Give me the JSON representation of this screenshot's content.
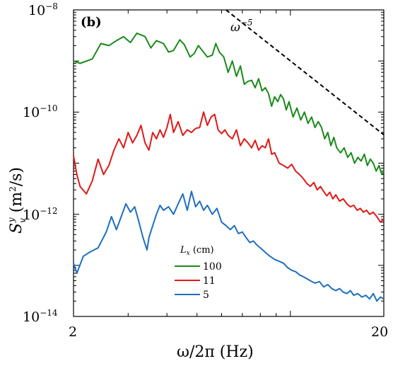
{
  "chart_data": {
    "type": "line",
    "panel_label": "(b)",
    "xlabel": "ω/2π (Hz)",
    "ylabel": {
      "symbol": "S",
      "sub": "v",
      "sup": "y",
      "unit": " (m",
      "unit_exp": "2",
      "unit_tail": "/s)"
    },
    "xscale": "log",
    "yscale": "log",
    "xlim": [
      2,
      20
    ],
    "ylim": [
      1e-14,
      1e-08
    ],
    "x_ticks": [
      "2",
      "20"
    ],
    "y_ticks": [
      {
        "base": "10",
        "exp": "−8",
        "value": 1e-08
      },
      {
        "base": "10",
        "exp": "−10",
        "value": 1e-10
      },
      {
        "base": "10",
        "exp": "−12",
        "value": 1e-12
      },
      {
        "base": "10",
        "exp": "−14",
        "value": 1e-14
      }
    ],
    "legend": {
      "title": "L_x (cm)",
      "title_main": "L",
      "title_sub": "x",
      "title_unit": " (cm)",
      "placement": "lower-center"
    },
    "annotation": {
      "base": "ω",
      "exp": "−5"
    },
    "series": [
      {
        "name": "100",
        "color": "#1a8a1a",
        "points": [
          [
            2.0,
            1e-09
          ],
          [
            2.1,
            9e-10
          ],
          [
            2.3,
            1.1e-09
          ],
          [
            2.45,
            2.2e-09
          ],
          [
            2.6,
            2e-09
          ],
          [
            2.75,
            2.5e-09
          ],
          [
            2.9,
            3e-09
          ],
          [
            3.05,
            2.3e-09
          ],
          [
            3.2,
            3.5e-09
          ],
          [
            3.4,
            3e-09
          ],
          [
            3.55,
            1.8e-09
          ],
          [
            3.7,
            2.5e-09
          ],
          [
            3.9,
            2.2e-09
          ],
          [
            4.05,
            1.5e-09
          ],
          [
            4.2,
            1.6e-09
          ],
          [
            4.4,
            2.6e-09
          ],
          [
            4.55,
            2.1e-09
          ],
          [
            4.75,
            1.2e-09
          ],
          [
            4.9,
            1.4e-09
          ],
          [
            5.05,
            2e-09
          ],
          [
            5.2,
            1.6e-09
          ],
          [
            5.4,
            1.2e-09
          ],
          [
            5.6,
            1.3e-09
          ],
          [
            5.75,
            2.2e-09
          ],
          [
            5.9,
            1.5e-09
          ],
          [
            6.1,
            1.2e-09
          ],
          [
            6.3,
            6e-10
          ],
          [
            6.5,
            1e-09
          ],
          [
            6.7,
            5e-10
          ],
          [
            6.9,
            8e-10
          ],
          [
            7.1,
            3.5e-10
          ],
          [
            7.3,
            4e-10
          ],
          [
            7.5,
            4.2e-10
          ],
          [
            7.7,
            3e-10
          ],
          [
            7.9,
            4.5e-10
          ],
          [
            8.1,
            2.6e-10
          ],
          [
            8.3,
            3e-10
          ],
          [
            8.5,
            2.3e-10
          ],
          [
            8.7,
            1.3e-10
          ],
          [
            8.9,
            2e-10
          ],
          [
            9.1,
            1.6e-10
          ],
          [
            9.3,
            2.2e-10
          ],
          [
            9.5,
            1.8e-10
          ],
          [
            9.7,
            1.1e-10
          ],
          [
            9.9,
            1.6e-10
          ],
          [
            10.2,
            8e-11
          ],
          [
            10.5,
            1.2e-10
          ],
          [
            10.8,
            7e-11
          ],
          [
            11.1,
            1e-10
          ],
          [
            11.4,
            6e-11
          ],
          [
            11.7,
            8e-11
          ],
          [
            12.0,
            5e-11
          ],
          [
            12.3,
            6.5e-11
          ],
          [
            12.6,
            5e-11
          ],
          [
            12.9,
            3e-11
          ],
          [
            13.2,
            4e-11
          ],
          [
            13.5,
            2.2e-11
          ],
          [
            13.8,
            3.2e-11
          ],
          [
            14.1,
            2e-11
          ],
          [
            14.5,
            1.6e-11
          ],
          [
            14.9,
            2e-11
          ],
          [
            15.3,
            1.3e-11
          ],
          [
            15.7,
            1.6e-11
          ],
          [
            16.1,
            1e-11
          ],
          [
            16.5,
            1.3e-11
          ],
          [
            16.9,
            1.1e-11
          ],
          [
            17.3,
            1.5e-11
          ],
          [
            17.7,
            9e-12
          ],
          [
            18.1,
            1.2e-11
          ],
          [
            18.5,
            1e-11
          ],
          [
            18.9,
            7e-12
          ],
          [
            19.3,
            9e-12
          ],
          [
            19.7,
            6e-12
          ],
          [
            20.0,
            7e-12
          ]
        ]
      },
      {
        "name": "11",
        "color": "#e01919",
        "points": [
          [
            2.0,
            1.4e-11
          ],
          [
            2.05,
            6e-12
          ],
          [
            2.1,
            3.5e-12
          ],
          [
            2.2,
            2.5e-12
          ],
          [
            2.3,
            4.5e-12
          ],
          [
            2.4,
            1.2e-11
          ],
          [
            2.5,
            6e-12
          ],
          [
            2.6,
            9e-12
          ],
          [
            2.7,
            1.8e-11
          ],
          [
            2.8,
            3e-11
          ],
          [
            2.9,
            2e-11
          ],
          [
            3.0,
            4e-11
          ],
          [
            3.1,
            2.5e-11
          ],
          [
            3.2,
            3.5e-11
          ],
          [
            3.3,
            5.5e-11
          ],
          [
            3.4,
            2.5e-11
          ],
          [
            3.5,
            1.8e-11
          ],
          [
            3.6,
            4e-11
          ],
          [
            3.7,
            3e-11
          ],
          [
            3.8,
            4.5e-11
          ],
          [
            3.9,
            3.2e-11
          ],
          [
            4.0,
            5e-11
          ],
          [
            4.1,
            9e-11
          ],
          [
            4.2,
            4e-11
          ],
          [
            4.35,
            6.5e-11
          ],
          [
            4.5,
            3.5e-11
          ],
          [
            4.65,
            4.5e-11
          ],
          [
            4.8,
            4e-11
          ],
          [
            4.95,
            4.8e-11
          ],
          [
            5.1,
            5e-11
          ],
          [
            5.25,
            1e-10
          ],
          [
            5.4,
            5.5e-11
          ],
          [
            5.55,
            8e-11
          ],
          [
            5.7,
            9e-11
          ],
          [
            5.85,
            4.5e-11
          ],
          [
            6.0,
            3.8e-11
          ],
          [
            6.15,
            4.5e-11
          ],
          [
            6.3,
            3.5e-11
          ],
          [
            6.5,
            3e-11
          ],
          [
            6.7,
            4.5e-11
          ],
          [
            6.9,
            2.2e-11
          ],
          [
            7.1,
            3e-11
          ],
          [
            7.3,
            2.5e-11
          ],
          [
            7.5,
            2e-11
          ],
          [
            7.7,
            2.8e-11
          ],
          [
            7.9,
            1.8e-11
          ],
          [
            8.1,
            2.2e-11
          ],
          [
            8.3,
            2e-11
          ],
          [
            8.5,
            3e-11
          ],
          [
            8.7,
            1.5e-11
          ],
          [
            8.9,
            1.6e-11
          ],
          [
            9.2,
            1e-11
          ],
          [
            9.5,
            9e-12
          ],
          [
            9.8,
            8e-12
          ],
          [
            10.1,
            9.5e-12
          ],
          [
            10.4,
            7e-12
          ],
          [
            10.7,
            6e-12
          ],
          [
            11.0,
            5e-12
          ],
          [
            11.3,
            4e-12
          ],
          [
            11.6,
            3.5e-12
          ],
          [
            11.9,
            4.2e-12
          ],
          [
            12.2,
            3e-12
          ],
          [
            12.5,
            3.5e-12
          ],
          [
            12.8,
            2.8e-12
          ],
          [
            13.1,
            2.3e-12
          ],
          [
            13.4,
            2.7e-12
          ],
          [
            13.7,
            2e-12
          ],
          [
            14.0,
            2.4e-12
          ],
          [
            14.4,
            1.8e-12
          ],
          [
            14.8,
            2e-12
          ],
          [
            15.2,
            1.6e-12
          ],
          [
            15.6,
            1.4e-12
          ],
          [
            16.0,
            1.5e-12
          ],
          [
            16.4,
            1.2e-12
          ],
          [
            16.8,
            1.3e-12
          ],
          [
            17.2,
            1.1e-12
          ],
          [
            17.6,
            1.2e-12
          ],
          [
            18.0,
            1e-12
          ],
          [
            18.5,
            1.1e-12
          ],
          [
            19.0,
            9e-13
          ],
          [
            19.5,
            7e-13
          ],
          [
            20.0,
            8e-13
          ]
        ]
      },
      {
        "name": "5",
        "color": "#1f6fbe",
        "points": [
          [
            2.0,
            1.1e-13
          ],
          [
            2.05,
            7e-14
          ],
          [
            2.15,
            1.5e-13
          ],
          [
            2.25,
            1.8e-13
          ],
          [
            2.4,
            2.2e-13
          ],
          [
            2.55,
            4.5e-13
          ],
          [
            2.65,
            9e-13
          ],
          [
            2.75,
            5e-13
          ],
          [
            2.85,
            9e-13
          ],
          [
            2.95,
            1.6e-12
          ],
          [
            3.05,
            1.1e-12
          ],
          [
            3.15,
            1.4e-12
          ],
          [
            3.25,
            7e-13
          ],
          [
            3.35,
            3.5e-13
          ],
          [
            3.45,
            2e-13
          ],
          [
            3.5,
            3.5e-13
          ],
          [
            3.6,
            6e-13
          ],
          [
            3.7,
            1e-12
          ],
          [
            3.8,
            1.5e-12
          ],
          [
            3.9,
            1.2e-12
          ],
          [
            4.05,
            1.4e-12
          ],
          [
            4.2,
            1e-12
          ],
          [
            4.35,
            1.6e-12
          ],
          [
            4.5,
            2.5e-12
          ],
          [
            4.65,
            1.2e-12
          ],
          [
            4.8,
            2.8e-12
          ],
          [
            4.95,
            1.4e-12
          ],
          [
            5.1,
            1.8e-12
          ],
          [
            5.25,
            1.2e-12
          ],
          [
            5.4,
            1.5e-12
          ],
          [
            5.6,
            1e-12
          ],
          [
            5.8,
            1.3e-12
          ],
          [
            6.0,
            7e-13
          ],
          [
            6.2,
            6e-13
          ],
          [
            6.4,
            5e-13
          ],
          [
            6.6,
            6e-13
          ],
          [
            6.8,
            4.2e-13
          ],
          [
            7.0,
            4.5e-13
          ],
          [
            7.2,
            3.5e-13
          ],
          [
            7.4,
            2.8e-13
          ],
          [
            7.6,
            3e-13
          ],
          [
            7.8,
            2.5e-13
          ],
          [
            8.0,
            2.2e-13
          ],
          [
            8.3,
            1.8e-13
          ],
          [
            8.6,
            1.5e-13
          ],
          [
            8.9,
            1.3e-13
          ],
          [
            9.2,
            1.2e-13
          ],
          [
            9.5,
            1.1e-13
          ],
          [
            9.8,
            9e-14
          ],
          [
            10.1,
            8e-14
          ],
          [
            10.4,
            7.5e-14
          ],
          [
            10.7,
            6.5e-14
          ],
          [
            11.0,
            6e-14
          ],
          [
            11.3,
            5.5e-14
          ],
          [
            11.6,
            5e-14
          ],
          [
            12.0,
            4.5e-14
          ],
          [
            12.4,
            4.8e-14
          ],
          [
            12.8,
            3.8e-14
          ],
          [
            13.2,
            4.2e-14
          ],
          [
            13.6,
            3.5e-14
          ],
          [
            14.0,
            3.2e-14
          ],
          [
            14.4,
            3.5e-14
          ],
          [
            14.8,
            3e-14
          ],
          [
            15.2,
            2.8e-14
          ],
          [
            15.6,
            3.2e-14
          ],
          [
            16.0,
            2.6e-14
          ],
          [
            16.5,
            2.8e-14
          ],
          [
            17.0,
            2.4e-14
          ],
          [
            17.5,
            2.6e-14
          ],
          [
            18.0,
            2.2e-14
          ],
          [
            18.5,
            2.8e-14
          ],
          [
            19.0,
            2e-14
          ],
          [
            19.5,
            2.4e-14
          ],
          [
            20.0,
            2.2e-14
          ]
        ]
      }
    ],
    "reference_line": {
      "style": "dashed",
      "color": "#000000",
      "slope": -5,
      "points": [
        [
          6.2,
          1e-08
        ],
        [
          20.0,
          3.6e-11
        ]
      ]
    }
  }
}
